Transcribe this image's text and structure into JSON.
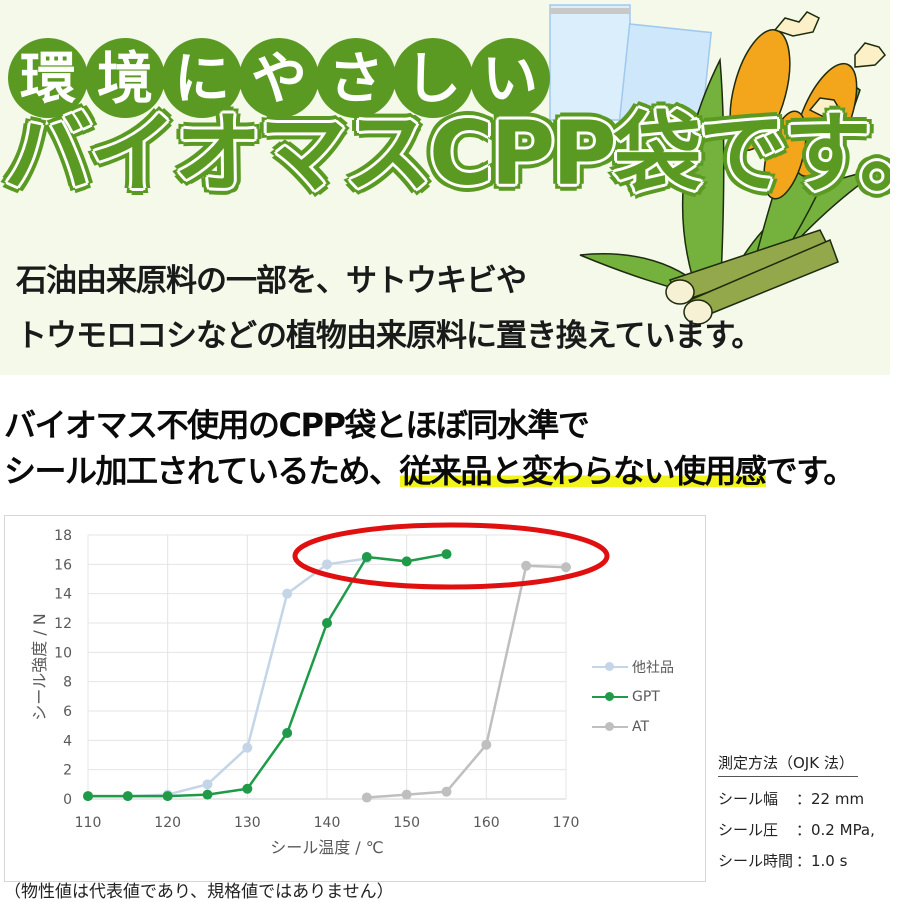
{
  "banner": {
    "title_line1_chars": [
      "環",
      "境",
      "に",
      "や",
      "さ",
      "し",
      "い"
    ],
    "title_line2": "バイオマスCPP袋です。",
    "subtitle_line1": "石油由来原料の一部を、サトウキビや",
    "subtitle_line2": "トウモロコシなどの植物由来原料に置き換えています。",
    "illustration": "clear-bags-corn-sugarcane",
    "accent_color": "#5b9a22",
    "background_color": "#f4f9ea"
  },
  "lead": {
    "line1": "バイオマス不使用のCPP袋とほぼ同水準で",
    "line2_plain": "シール加工されているため、",
    "line2_highlight": "従来品と変わらない使用感",
    "line2_tail": "です。",
    "highlight_color": "#f3f31c"
  },
  "chart_data": {
    "type": "line",
    "title": "",
    "xlabel": "シール温度 / ℃",
    "ylabel": "シール強度 / N",
    "xlim": [
      110,
      170
    ],
    "ylim": [
      0,
      18
    ],
    "x_ticks": [
      110,
      120,
      130,
      140,
      150,
      160,
      170
    ],
    "y_ticks": [
      0,
      2,
      4,
      6,
      8,
      10,
      12,
      14,
      16,
      18
    ],
    "grid": true,
    "legend_position": "right",
    "series": [
      {
        "name": "他社品",
        "color": "#c5d5e8",
        "x": [
          110,
          115,
          120,
          125,
          130,
          135,
          140,
          145
        ],
        "values": [
          0.2,
          0.2,
          0.3,
          1.0,
          3.5,
          14.0,
          16.0,
          16.4
        ]
      },
      {
        "name": "GPT",
        "color": "#1f9a48",
        "x": [
          110,
          115,
          120,
          125,
          130,
          135,
          140,
          145,
          150,
          155
        ],
        "values": [
          0.2,
          0.2,
          0.2,
          0.3,
          0.7,
          4.5,
          12.0,
          16.5,
          16.2,
          16.7
        ]
      },
      {
        "name": "AT",
        "color": "#bfbfbf",
        "x": [
          145,
          150,
          155,
          160,
          165,
          170
        ],
        "values": [
          0.1,
          0.3,
          0.5,
          3.7,
          15.9,
          15.8
        ]
      }
    ],
    "annotations": [
      {
        "type": "ellipse",
        "color": "#e01010",
        "center_x": 150,
        "center_y": 16.5,
        "note": "plateau highlight"
      }
    ]
  },
  "legend": [
    {
      "label": "他社品",
      "color": "#c5d5e8"
    },
    {
      "label": "GPT",
      "color": "#1f9a48"
    },
    {
      "label": "AT",
      "color": "#bfbfbf"
    }
  ],
  "method": {
    "title": "測定方法（OJK 法）",
    "rows": [
      {
        "key": "シール幅",
        "value": "：22 mm"
      },
      {
        "key": "シール圧",
        "value": "：0.2 MPa,"
      },
      {
        "key": "シール時間",
        "value": "：1.0 s"
      }
    ]
  },
  "note": "（物性値は代表値であり、規格値ではありません）"
}
